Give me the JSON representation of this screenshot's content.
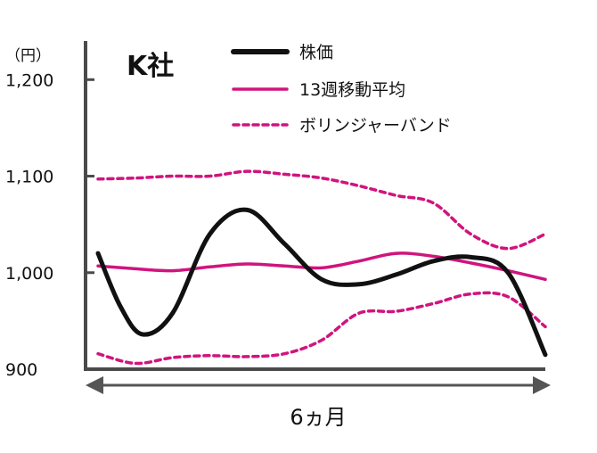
{
  "chart_data": {
    "type": "line",
    "title": "K社",
    "y_unit": "（円）",
    "xlabel": "6ヵ月",
    "ylim": [
      900,
      1240
    ],
    "xlim": [
      0,
      6
    ],
    "y_ticks": [
      {
        "value": 1200,
        "label": "1,200"
      },
      {
        "value": 1100,
        "label": "1,100"
      },
      {
        "value": 1000,
        "label": "1,000"
      },
      {
        "value": 900,
        "label": "900"
      }
    ],
    "grid": false,
    "legend_position": "top-right",
    "series": [
      {
        "name": "株価",
        "style": "solid-thick",
        "color": "#111111",
        "x": [
          0.0,
          0.3,
          0.6,
          1.0,
          1.5,
          2.0,
          2.5,
          3.0,
          3.5,
          4.0,
          4.5,
          5.0,
          5.5,
          6.0
        ],
        "y": [
          1020,
          965,
          936,
          958,
          1040,
          1065,
          1030,
          993,
          988,
          998,
          1012,
          1016,
          1000,
          915
        ]
      },
      {
        "name": "13週移動平均",
        "style": "solid",
        "color": "#d0147e",
        "x": [
          0.0,
          0.5,
          1.0,
          1.5,
          2.0,
          2.5,
          3.0,
          3.5,
          4.0,
          4.5,
          5.0,
          5.5,
          6.0
        ],
        "y": [
          1007,
          1004,
          1002,
          1006,
          1009,
          1007,
          1005,
          1012,
          1020,
          1017,
          1010,
          1002,
          993
        ]
      },
      {
        "name": "ボリンジャーバンド",
        "style": "dotted",
        "color": "#d0147e",
        "x": [
          0.0,
          0.5,
          1.0,
          1.5,
          2.0,
          2.5,
          3.0,
          3.5,
          4.0,
          4.5,
          5.0,
          5.5,
          6.0
        ],
        "y": [
          1097,
          1098,
          1100,
          1100,
          1105,
          1102,
          1098,
          1090,
          1080,
          1072,
          1040,
          1025,
          1040
        ]
      },
      {
        "name": "",
        "style": "dotted",
        "color": "#d0147e",
        "x": [
          0.0,
          0.5,
          1.0,
          1.5,
          2.0,
          2.5,
          3.0,
          3.5,
          4.0,
          4.5,
          5.0,
          5.5,
          6.0
        ],
        "y": [
          916,
          906,
          912,
          914,
          913,
          916,
          930,
          958,
          960,
          968,
          978,
          975,
          944
        ]
      }
    ]
  }
}
